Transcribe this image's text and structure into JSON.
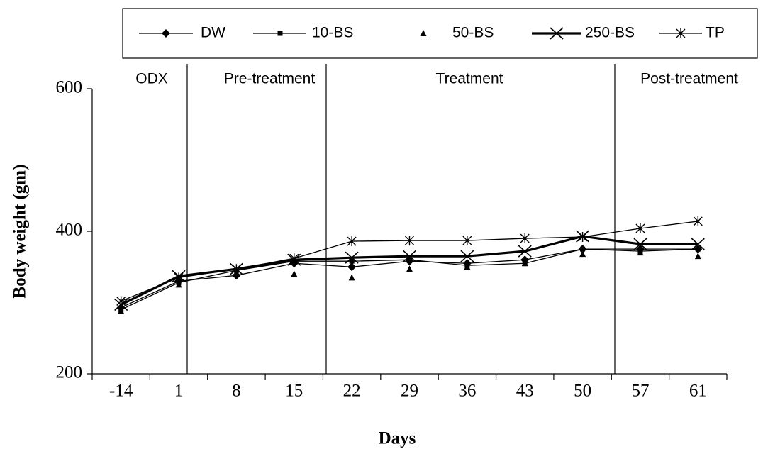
{
  "chart_data": {
    "type": "line",
    "x_label": "Days",
    "y_label": "Body weight (gm)",
    "categories": [
      "-14",
      "1",
      "8",
      "15",
      "22",
      "29",
      "36",
      "43",
      "50",
      "57",
      "61"
    ],
    "ylim": [
      200,
      600
    ],
    "yticks": [
      200,
      400,
      600
    ],
    "phases": [
      "ODX",
      "Pre-treatment",
      "Treatment",
      "Post-treatment"
    ],
    "series": [
      {
        "name": "DW",
        "color": "#000000",
        "marker": "diamond",
        "line": true,
        "line_width": 1.3,
        "values": [
          293,
          330,
          338,
          355,
          350,
          358,
          355,
          360,
          375,
          375,
          375
        ]
      },
      {
        "name": "10-BS",
        "color": "#000000",
        "marker": "square",
        "line": true,
        "line_width": 1.3,
        "values": [
          290,
          328,
          345,
          358,
          358,
          360,
          352,
          355,
          375,
          372,
          375
        ]
      },
      {
        "name": "50-BS",
        "color": "#000000",
        "marker": "triangle",
        "line": false,
        "line_width": 1.3,
        "values": [
          288,
          325,
          340,
          340,
          335,
          347,
          350,
          355,
          368,
          370,
          365
        ]
      },
      {
        "name": "250-BS",
        "color": "#000000",
        "marker": "x",
        "line": true,
        "line_width": 3.2,
        "values": [
          297,
          337,
          347,
          360,
          363,
          365,
          365,
          372,
          393,
          382,
          382
        ]
      },
      {
        "name": "TP",
        "color": "#000000",
        "marker": "asterisk",
        "line": true,
        "line_width": 1.3,
        "values": [
          302,
          335,
          347,
          362,
          386,
          387,
          387,
          390,
          392,
          404,
          414
        ]
      }
    ]
  }
}
